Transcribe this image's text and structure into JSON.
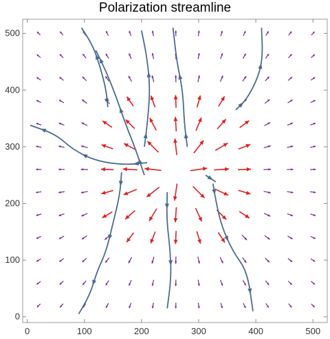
{
  "chart_data": {
    "type": "vector-field",
    "title": "Polarization streamline",
    "xlabel": "",
    "ylabel": "",
    "xlim": [
      -8,
      525
    ],
    "ylim": [
      -10,
      525
    ],
    "xticks": [
      0,
      100,
      200,
      300,
      400,
      500
    ],
    "yticks": [
      0,
      100,
      200,
      300,
      400,
      500
    ],
    "grid": false,
    "center": [
      265,
      255
    ],
    "grid_points": {
      "start": 20,
      "step": 40,
      "count": 13
    },
    "colors": {
      "strong": "#e02020",
      "weak": "#7a1fa2",
      "streamline": "#4a6b90",
      "frame": "#999999"
    },
    "streamlines": [
      [
        [
          141,
          370
        ],
        [
          138,
          400
        ],
        [
          128,
          440
        ],
        [
          115,
          478
        ],
        [
          95,
          510
        ]
      ],
      [
        [
          165,
          255
        ],
        [
          162,
          215
        ],
        [
          150,
          165
        ],
        [
          138,
          115
        ],
        [
          122,
          80
        ],
        [
          110,
          40
        ],
        [
          90,
          5
        ]
      ],
      [
        [
          210,
          272
        ],
        [
          170,
          268
        ],
        [
          120,
          275
        ],
        [
          80,
          295
        ],
        [
          50,
          322
        ],
        [
          5,
          338
        ]
      ],
      [
        [
          205,
          250
        ],
        [
          188,
          300
        ],
        [
          172,
          340
        ],
        [
          155,
          390
        ],
        [
          137,
          435
        ],
        [
          120,
          470
        ]
      ],
      [
        [
          245,
          220
        ],
        [
          244,
          170
        ],
        [
          250,
          120
        ],
        [
          252,
          70
        ],
        [
          245,
          15
        ]
      ],
      [
        [
          280,
          300
        ],
        [
          275,
          340
        ],
        [
          272,
          400
        ],
        [
          262,
          448
        ],
        [
          255,
          510
        ]
      ],
      [
        [
          325,
          235
        ],
        [
          330,
          205
        ],
        [
          340,
          160
        ],
        [
          360,
          115
        ],
        [
          385,
          80
        ],
        [
          395,
          10
        ]
      ],
      [
        [
          365,
          365
        ],
        [
          385,
          385
        ],
        [
          405,
          425
        ],
        [
          412,
          460
        ],
        [
          410,
          510
        ]
      ],
      [
        [
          205,
          300
        ],
        [
          210,
          340
        ],
        [
          215,
          400
        ],
        [
          210,
          455
        ],
        [
          200,
          505
        ]
      ],
      [
        [
          312,
          250
        ],
        [
          330,
          238
        ]
      ]
    ]
  }
}
